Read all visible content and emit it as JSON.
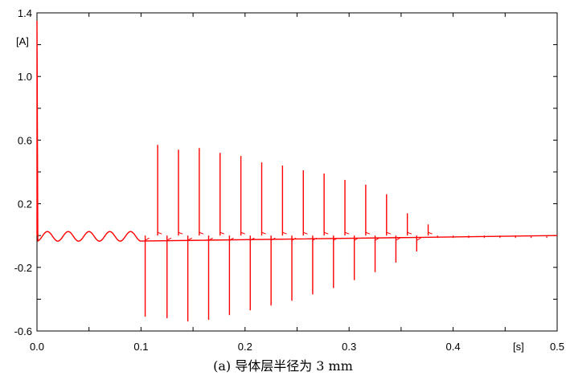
{
  "caption": "(a)  导体层半径为 3 mm",
  "chart_data": {
    "type": "line",
    "series_color": "#ff0000",
    "y_unit": "[A]",
    "x_unit": "[s]",
    "xlim": [
      0.0,
      0.5
    ],
    "ylim": [
      -0.6,
      1.4
    ],
    "x_ticks": [
      0.0,
      0.1,
      0.2,
      0.3,
      0.4,
      0.5
    ],
    "x_tick_labels": [
      "0.0",
      "0.1",
      "0.2",
      "0.3",
      "0.4",
      "0.5"
    ],
    "y_ticks": [
      -0.6,
      -0.2,
      0.2,
      0.6,
      1.0,
      1.4
    ],
    "y_tick_labels": [
      "-0.6",
      "-0.2",
      "0.2",
      "0.6",
      "1.0",
      "1.4"
    ],
    "grid": false,
    "initial_spike": 1.35,
    "steady_amplitude": 0.03,
    "steady_frequency_hz": 50,
    "steady_end_time": 0.1,
    "positive_spikes": [
      {
        "t": 0.116,
        "v": 0.57
      },
      {
        "t": 0.136,
        "v": 0.54
      },
      {
        "t": 0.156,
        "v": 0.55
      },
      {
        "t": 0.176,
        "v": 0.52
      },
      {
        "t": 0.196,
        "v": 0.5
      },
      {
        "t": 0.216,
        "v": 0.46
      },
      {
        "t": 0.236,
        "v": 0.44
      },
      {
        "t": 0.256,
        "v": 0.41
      },
      {
        "t": 0.276,
        "v": 0.39
      },
      {
        "t": 0.296,
        "v": 0.35
      },
      {
        "t": 0.316,
        "v": 0.32
      },
      {
        "t": 0.336,
        "v": 0.26
      },
      {
        "t": 0.356,
        "v": 0.14
      },
      {
        "t": 0.376,
        "v": 0.07
      }
    ],
    "negative_spikes": [
      {
        "t": 0.104,
        "v": -0.51
      },
      {
        "t": 0.125,
        "v": -0.52
      },
      {
        "t": 0.145,
        "v": -0.54
      },
      {
        "t": 0.165,
        "v": -0.53
      },
      {
        "t": 0.185,
        "v": -0.5
      },
      {
        "t": 0.205,
        "v": -0.47
      },
      {
        "t": 0.225,
        "v": -0.44
      },
      {
        "t": 0.245,
        "v": -0.41
      },
      {
        "t": 0.265,
        "v": -0.37
      },
      {
        "t": 0.285,
        "v": -0.33
      },
      {
        "t": 0.305,
        "v": -0.28
      },
      {
        "t": 0.325,
        "v": -0.23
      },
      {
        "t": 0.345,
        "v": -0.17
      },
      {
        "t": 0.365,
        "v": -0.1
      }
    ],
    "tail_spikes": [
      0.385,
      0.4,
      0.415,
      0.43,
      0.445,
      0.46,
      0.475,
      0.49
    ]
  }
}
